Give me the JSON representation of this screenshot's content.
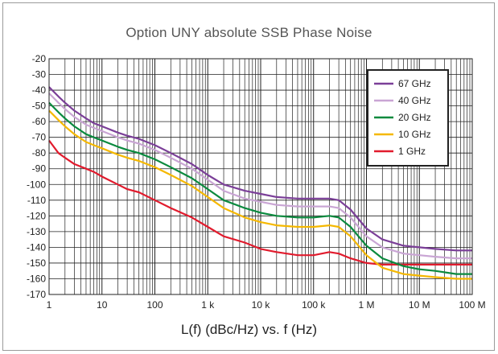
{
  "chart_data": {
    "type": "line",
    "title": "Option UNY absolute SSB Phase Noise",
    "xlabel": "L(f) (dBc/Hz) vs. f (Hz)",
    "ylabel": "",
    "x_scale": "log",
    "xlim": [
      1,
      100000000
    ],
    "ylim": [
      -170,
      -20
    ],
    "x_tick_values": [
      1,
      10,
      100,
      1000,
      10000,
      100000,
      1000000,
      10000000,
      100000000
    ],
    "x_tick_labels": [
      "1",
      "10",
      "100",
      "1 k",
      "10 k",
      "100 k",
      "1 M",
      "10 M",
      "100 M"
    ],
    "y_tick_values": [
      -20,
      -30,
      -40,
      -50,
      -60,
      -70,
      -80,
      -90,
      -100,
      -110,
      -120,
      -130,
      -140,
      -150,
      -160,
      -170
    ],
    "y_tick_labels": [
      "-20",
      "-30",
      "-40",
      "-50",
      "-60",
      "-70",
      "-80",
      "-90",
      "-100",
      "-110",
      "-120",
      "-130",
      "-140",
      "-150",
      "-160",
      "-170"
    ],
    "grid": true,
    "legend_position": "top-right",
    "series": [
      {
        "name": "67 GHz",
        "color": "#7b3f98",
        "x": [
          1,
          1.5,
          2,
          3,
          5,
          7,
          10,
          20,
          30,
          50,
          100,
          200,
          500,
          1000,
          2000,
          5000,
          10000,
          20000,
          50000,
          100000,
          200000,
          300000,
          500000,
          1000000,
          2000000,
          5000000,
          10000000,
          20000000,
          50000000,
          100000000
        ],
        "y": [
          -38,
          -44,
          -48,
          -53,
          -58,
          -61,
          -63,
          -67,
          -69,
          -71,
          -75,
          -80,
          -87,
          -94,
          -100,
          -104,
          -106,
          -108,
          -109,
          -109,
          -109,
          -110,
          -116,
          -128,
          -135,
          -139,
          -140,
          -141,
          -142,
          -142
        ]
      },
      {
        "name": "40 GHz",
        "color": "#c9a5d4",
        "x": [
          1,
          1.5,
          2,
          3,
          5,
          7,
          10,
          20,
          30,
          50,
          100,
          200,
          500,
          1000,
          2000,
          5000,
          10000,
          20000,
          50000,
          100000,
          200000,
          300000,
          500000,
          1000000,
          2000000,
          5000000,
          10000000,
          20000000,
          50000000,
          100000000
        ],
        "y": [
          -42,
          -48,
          -52,
          -57,
          -62,
          -64,
          -66,
          -70,
          -72,
          -74,
          -78,
          -83,
          -90,
          -97,
          -104,
          -109,
          -111,
          -113,
          -114,
          -114,
          -114,
          -115,
          -121,
          -133,
          -140,
          -144,
          -145,
          -146,
          -147,
          -147
        ]
      },
      {
        "name": "20 GHz",
        "color": "#0a8a3e",
        "x": [
          1,
          1.5,
          2,
          3,
          5,
          7,
          10,
          20,
          30,
          50,
          100,
          200,
          500,
          1000,
          2000,
          5000,
          10000,
          20000,
          50000,
          100000,
          200000,
          300000,
          500000,
          1000000,
          2000000,
          5000000,
          10000000,
          20000000,
          50000000,
          100000000
        ],
        "y": [
          -48,
          -54,
          -58,
          -63,
          -68,
          -70,
          -72,
          -76,
          -78,
          -80,
          -84,
          -89,
          -96,
          -103,
          -110,
          -115,
          -118,
          -120,
          -121,
          -121,
          -120,
          -121,
          -127,
          -139,
          -147,
          -152,
          -154,
          -155,
          -157,
          -157
        ]
      },
      {
        "name": "10 GHz",
        "color": "#f5b800",
        "x": [
          1,
          1.5,
          2,
          3,
          5,
          7,
          10,
          20,
          30,
          50,
          100,
          200,
          500,
          1000,
          2000,
          5000,
          10000,
          20000,
          50000,
          100000,
          200000,
          300000,
          500000,
          1000000,
          2000000,
          5000000,
          10000000,
          20000000,
          50000000,
          100000000
        ],
        "y": [
          -53,
          -59,
          -63,
          -68,
          -73,
          -75,
          -77,
          -81,
          -83,
          -85,
          -89,
          -94,
          -101,
          -108,
          -115,
          -121,
          -124,
          -126,
          -127,
          -127,
          -126,
          -127,
          -133,
          -145,
          -153,
          -157,
          -158,
          -159,
          -160,
          -160
        ]
      },
      {
        "name": "1 GHz",
        "color": "#e11b2d",
        "x": [
          1,
          1.5,
          2,
          3,
          5,
          7,
          10,
          20,
          30,
          50,
          100,
          200,
          500,
          1000,
          2000,
          5000,
          10000,
          20000,
          50000,
          100000,
          200000,
          300000,
          500000,
          1000000,
          2000000,
          5000000,
          10000000,
          20000000,
          50000000,
          100000000
        ],
        "y": [
          -72,
          -80,
          -83,
          -87,
          -90,
          -92,
          -95,
          -100,
          -103,
          -105,
          -110,
          -115,
          -121,
          -127,
          -133,
          -137,
          -141,
          -143,
          -145,
          -145,
          -143,
          -144,
          -147,
          -150,
          -151,
          -151,
          -151,
          -151,
          -151,
          -151
        ]
      }
    ]
  }
}
